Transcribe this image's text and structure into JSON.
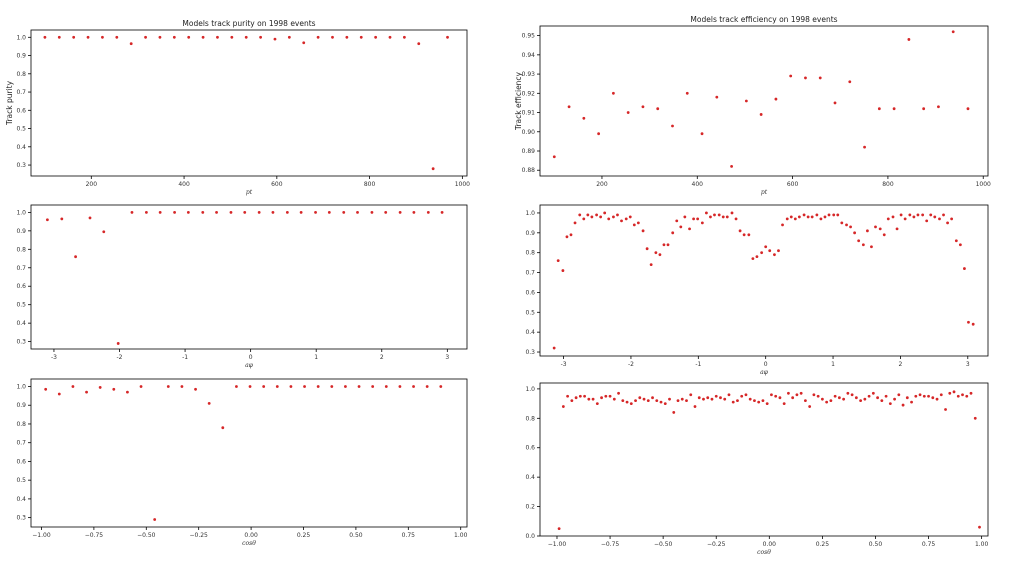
{
  "colors": {
    "marker": "#d62728",
    "axis": "#000000",
    "background": "#ffffff"
  },
  "chart_data": [
    {
      "type": "scatter",
      "title": "Models track purity on 1998 events",
      "xlabel": "pt",
      "ylabel": "Track purity",
      "xlim": [
        70,
        1010
      ],
      "ylim": [
        0.24,
        1.04
      ],
      "xticks": [
        200,
        400,
        600,
        800,
        1000
      ],
      "yticks": [
        0.3,
        0.4,
        0.5,
        0.6,
        0.7,
        0.8,
        0.9,
        1.0
      ],
      "x": [
        100,
        131,
        162,
        193,
        224,
        255,
        286,
        317,
        348,
        379,
        410,
        441,
        472,
        503,
        534,
        565,
        596,
        627,
        658,
        689,
        720,
        751,
        782,
        813,
        844,
        875,
        906,
        937,
        968
      ],
      "y": [
        1.0,
        1.0,
        1.0,
        1.0,
        1.0,
        1.0,
        0.965,
        1.0,
        1.0,
        1.0,
        1.0,
        1.0,
        1.0,
        1.0,
        1.0,
        1.0,
        0.99,
        1.0,
        0.97,
        1.0,
        1.0,
        1.0,
        1.0,
        1.0,
        1.0,
        1.0,
        0.965,
        0.28,
        1.0
      ]
    },
    {
      "type": "scatter",
      "title": "Models track efficiency on 1998 events",
      "xlabel": "pt",
      "ylabel": "Track efficiency",
      "xlim": [
        70,
        1010
      ],
      "ylim": [
        0.877,
        0.955
      ],
      "xticks": [
        200,
        400,
        600,
        800,
        1000
      ],
      "yticks": [
        0.88,
        0.89,
        0.9,
        0.91,
        0.92,
        0.93,
        0.94,
        0.95
      ],
      "x": [
        100,
        131,
        162,
        193,
        224,
        255,
        286,
        317,
        348,
        379,
        410,
        441,
        472,
        503,
        534,
        565,
        596,
        627,
        658,
        689,
        720,
        751,
        782,
        813,
        844,
        875,
        906,
        937,
        968
      ],
      "y": [
        0.887,
        0.913,
        0.907,
        0.899,
        0.92,
        0.91,
        0.913,
        0.912,
        0.903,
        0.92,
        0.899,
        0.918,
        0.882,
        0.916,
        0.909,
        0.917,
        0.929,
        0.928,
        0.928,
        0.915,
        0.926,
        0.892,
        0.912,
        0.912,
        0.948,
        0.912,
        0.913,
        0.952,
        0.912
      ]
    },
    {
      "type": "scatter",
      "title": "",
      "xlabel": "aφ",
      "ylabel": "",
      "xlim": [
        -3.35,
        3.3
      ],
      "ylim": [
        0.26,
        1.04
      ],
      "xticks": [
        -3,
        -2,
        -1,
        0,
        1,
        2,
        3
      ],
      "yticks": [
        0.3,
        0.4,
        0.5,
        0.6,
        0.7,
        0.8,
        0.9,
        1.0
      ],
      "x": [
        -3.1,
        -2.88,
        -2.67,
        -2.45,
        -2.24,
        -2.02,
        -1.81,
        -1.59,
        -1.38,
        -1.16,
        -0.95,
        -0.73,
        -0.52,
        -0.3,
        -0.09,
        0.13,
        0.34,
        0.56,
        0.77,
        0.99,
        1.2,
        1.42,
        1.63,
        1.85,
        2.06,
        2.28,
        2.49,
        2.71,
        2.92
      ],
      "y": [
        0.96,
        0.965,
        0.76,
        0.97,
        0.895,
        0.29,
        1.0,
        1.0,
        1.0,
        1.0,
        1.0,
        1.0,
        1.0,
        1.0,
        1.0,
        1.0,
        1.0,
        1.0,
        1.0,
        1.0,
        1.0,
        1.0,
        1.0,
        1.0,
        1.0,
        1.0,
        1.0,
        1.0,
        1.0
      ]
    },
    {
      "type": "scatter",
      "title": "",
      "xlabel": "aφ",
      "ylabel": "",
      "xlim": [
        -3.35,
        3.3
      ],
      "ylim": [
        0.28,
        1.04
      ],
      "xticks": [
        -3,
        -2,
        -1,
        0,
        1,
        2,
        3
      ],
      "yticks": [
        0.3,
        0.4,
        0.5,
        0.6,
        0.7,
        0.8,
        0.9,
        1.0
      ],
      "x": [
        -3.14,
        -3.08,
        -3.01,
        -2.95,
        -2.89,
        -2.83,
        -2.76,
        -2.7,
        -2.64,
        -2.58,
        -2.51,
        -2.45,
        -2.39,
        -2.33,
        -2.26,
        -2.2,
        -2.14,
        -2.07,
        -2.01,
        -1.95,
        -1.89,
        -1.82,
        -1.76,
        -1.7,
        -1.63,
        -1.57,
        -1.51,
        -1.45,
        -1.38,
        -1.32,
        -1.26,
        -1.2,
        -1.13,
        -1.07,
        -1.01,
        -0.94,
        -0.88,
        -0.82,
        -0.76,
        -0.69,
        -0.63,
        -0.57,
        -0.5,
        -0.44,
        -0.38,
        -0.32,
        -0.25,
        -0.19,
        -0.13,
        -0.06,
        0.0,
        0.06,
        0.13,
        0.19,
        0.25,
        0.32,
        0.38,
        0.44,
        0.5,
        0.57,
        0.63,
        0.69,
        0.76,
        0.82,
        0.88,
        0.94,
        1.01,
        1.07,
        1.13,
        1.2,
        1.26,
        1.32,
        1.38,
        1.45,
        1.51,
        1.57,
        1.63,
        1.7,
        1.76,
        1.82,
        1.89,
        1.95,
        2.01,
        2.07,
        2.14,
        2.2,
        2.26,
        2.33,
        2.39,
        2.45,
        2.51,
        2.58,
        2.64,
        2.7,
        2.76,
        2.83,
        2.89,
        2.95,
        3.01,
        3.08
      ],
      "y": [
        0.32,
        0.76,
        0.71,
        0.88,
        0.89,
        0.95,
        0.99,
        0.97,
        0.99,
        0.98,
        0.99,
        0.98,
        1.0,
        0.97,
        0.98,
        0.99,
        0.96,
        0.97,
        0.98,
        0.94,
        0.95,
        0.91,
        0.82,
        0.74,
        0.8,
        0.79,
        0.84,
        0.84,
        0.9,
        0.96,
        0.93,
        0.98,
        0.92,
        0.97,
        0.97,
        0.95,
        1.0,
        0.98,
        0.99,
        0.99,
        0.98,
        0.98,
        1.0,
        0.97,
        0.91,
        0.89,
        0.89,
        0.77,
        0.78,
        0.8,
        0.83,
        0.81,
        0.79,
        0.81,
        0.94,
        0.97,
        0.98,
        0.97,
        0.98,
        0.99,
        0.98,
        0.98,
        0.99,
        0.97,
        0.98,
        0.99,
        0.99,
        0.99,
        0.95,
        0.94,
        0.93,
        0.9,
        0.86,
        0.84,
        0.91,
        0.83,
        0.93,
        0.92,
        0.89,
        0.97,
        0.98,
        0.92,
        0.99,
        0.97,
        0.99,
        0.98,
        0.99,
        0.99,
        0.96,
        0.99,
        0.98,
        0.97,
        0.99,
        0.95,
        0.97,
        0.86,
        0.84,
        0.72,
        0.45,
        0.44
      ]
    },
    {
      "type": "scatter",
      "title": "",
      "xlabel": "cosθ",
      "ylabel": "",
      "xlim": [
        -1.05,
        1.03
      ],
      "ylim": [
        0.25,
        1.04
      ],
      "xticks": [
        -1.0,
        -0.75,
        -0.5,
        -0.25,
        0.0,
        0.25,
        0.5,
        0.75,
        1.0
      ],
      "xtick_labels": [
        "−1.00",
        "−0.75",
        "−0.50",
        "−0.25",
        "0.00",
        "0.25",
        "0.50",
        "0.75",
        "1.00"
      ],
      "yticks": [
        0.3,
        0.4,
        0.5,
        0.6,
        0.7,
        0.8,
        0.9,
        1.0
      ],
      "x": [
        -0.98,
        -0.915,
        -0.85,
        -0.785,
        -0.72,
        -0.655,
        -0.59,
        -0.525,
        -0.46,
        -0.395,
        -0.33,
        -0.265,
        -0.2,
        -0.135,
        -0.07,
        -0.005,
        0.06,
        0.125,
        0.19,
        0.255,
        0.32,
        0.385,
        0.45,
        0.515,
        0.58,
        0.645,
        0.71,
        0.775,
        0.84,
        0.905
      ],
      "y": [
        0.985,
        0.96,
        1.0,
        0.97,
        0.995,
        0.985,
        0.97,
        1.0,
        0.29,
        1.0,
        1.0,
        0.985,
        0.91,
        0.78,
        1.0,
        1.0,
        1.0,
        1.0,
        1.0,
        1.0,
        1.0,
        1.0,
        1.0,
        1.0,
        1.0,
        1.0,
        1.0,
        1.0,
        1.0,
        1.0
      ]
    },
    {
      "type": "scatter",
      "title": "",
      "xlabel": "cosθ",
      "ylabel": "",
      "xlim": [
        -1.08,
        1.03
      ],
      "ylim": [
        0.0,
        1.04
      ],
      "xticks": [
        -1.0,
        -0.75,
        -0.5,
        -0.25,
        0.0,
        0.25,
        0.5,
        0.75,
        1.0
      ],
      "xtick_labels": [
        "−1.00",
        "−0.75",
        "−0.50",
        "−0.25",
        "0.00",
        "0.25",
        "0.50",
        "0.75",
        "1.00"
      ],
      "yticks": [
        0.0,
        0.2,
        0.4,
        0.6,
        0.8,
        1.0
      ],
      "x": [
        -0.99,
        -0.97,
        -0.95,
        -0.93,
        -0.91,
        -0.89,
        -0.87,
        -0.85,
        -0.83,
        -0.81,
        -0.79,
        -0.77,
        -0.75,
        -0.73,
        -0.71,
        -0.69,
        -0.67,
        -0.65,
        -0.63,
        -0.61,
        -0.59,
        -0.57,
        -0.55,
        -0.53,
        -0.51,
        -0.49,
        -0.47,
        -0.45,
        -0.43,
        -0.41,
        -0.39,
        -0.37,
        -0.35,
        -0.33,
        -0.31,
        -0.29,
        -0.27,
        -0.25,
        -0.23,
        -0.21,
        -0.19,
        -0.17,
        -0.15,
        -0.13,
        -0.11,
        -0.09,
        -0.07,
        -0.05,
        -0.03,
        -0.01,
        0.01,
        0.03,
        0.05,
        0.07,
        0.09,
        0.11,
        0.13,
        0.15,
        0.17,
        0.19,
        0.21,
        0.23,
        0.25,
        0.27,
        0.29,
        0.31,
        0.33,
        0.35,
        0.37,
        0.39,
        0.41,
        0.43,
        0.45,
        0.47,
        0.49,
        0.51,
        0.53,
        0.55,
        0.57,
        0.59,
        0.61,
        0.63,
        0.65,
        0.67,
        0.69,
        0.71,
        0.73,
        0.75,
        0.77,
        0.79,
        0.81,
        0.83,
        0.85,
        0.87,
        0.89,
        0.91,
        0.93,
        0.95,
        0.97,
        0.99
      ],
      "y": [
        0.05,
        0.88,
        0.95,
        0.92,
        0.94,
        0.95,
        0.95,
        0.93,
        0.93,
        0.9,
        0.94,
        0.95,
        0.95,
        0.93,
        0.97,
        0.92,
        0.91,
        0.9,
        0.92,
        0.94,
        0.93,
        0.92,
        0.94,
        0.92,
        0.91,
        0.9,
        0.93,
        0.84,
        0.92,
        0.93,
        0.92,
        0.96,
        0.88,
        0.94,
        0.93,
        0.94,
        0.93,
        0.95,
        0.94,
        0.93,
        0.96,
        0.91,
        0.92,
        0.95,
        0.96,
        0.93,
        0.92,
        0.91,
        0.92,
        0.9,
        0.96,
        0.95,
        0.94,
        0.9,
        0.97,
        0.94,
        0.96,
        0.97,
        0.92,
        0.88,
        0.96,
        0.95,
        0.93,
        0.91,
        0.92,
        0.95,
        0.94,
        0.93,
        0.97,
        0.96,
        0.94,
        0.92,
        0.93,
        0.95,
        0.97,
        0.94,
        0.92,
        0.95,
        0.9,
        0.93,
        0.96,
        0.89,
        0.94,
        0.91,
        0.95,
        0.96,
        0.95,
        0.95,
        0.94,
        0.93,
        0.96,
        0.86,
        0.97,
        0.98,
        0.95,
        0.96,
        0.95,
        0.97,
        0.8,
        0.06
      ]
    }
  ]
}
